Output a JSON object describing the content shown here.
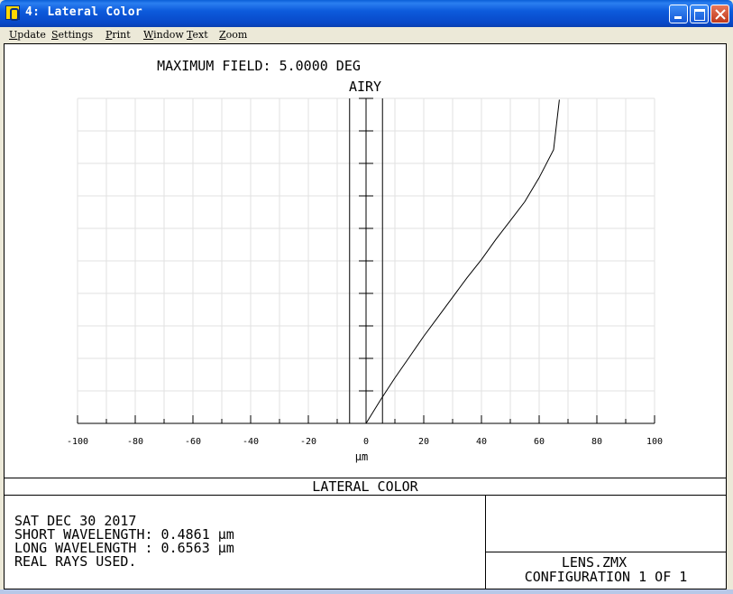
{
  "window": {
    "title": "4: Lateral Color"
  },
  "menu": [
    "Update",
    "Settings",
    "Print",
    "Window",
    "Text",
    "Zoom"
  ],
  "plot_header": {
    "line1": "MAXIMUM FIELD: 5.0000 DEG",
    "line2": "AIRY"
  },
  "footer": {
    "title": "LATERAL COLOR",
    "info_lines": [
      "SAT DEC 30 2017",
      "SHORT WAVELENGTH: 0.4861 µm",
      "LONG WAVELENGTH : 0.6563 µm",
      "REAL RAYS USED."
    ],
    "file_name": "LENS.ZMX",
    "configuration": "CONFIGURATION 1 OF 1"
  },
  "chart_data": {
    "type": "line",
    "xlabel": "µm",
    "xlim": [
      -100,
      100
    ],
    "ylim": [
      0,
      5
    ],
    "xticks": [
      -100,
      -80,
      -60,
      -40,
      -20,
      0,
      20,
      40,
      60,
      80,
      100
    ],
    "grid": true,
    "airy_radius": 5.7,
    "series": [
      {
        "x": [
          0,
          5,
          10,
          15,
          20,
          25,
          30,
          35,
          40,
          45,
          50,
          55,
          60,
          65,
          67
        ],
        "y": [
          0,
          0.36,
          0.7,
          1.02,
          1.34,
          1.64,
          1.94,
          2.24,
          2.52,
          2.83,
          3.12,
          3.41,
          3.78,
          4.21,
          4.98
        ]
      }
    ],
    "colors": {
      "line": "#000000",
      "grid": "#e2e2e2",
      "background": "#ffffff"
    }
  }
}
